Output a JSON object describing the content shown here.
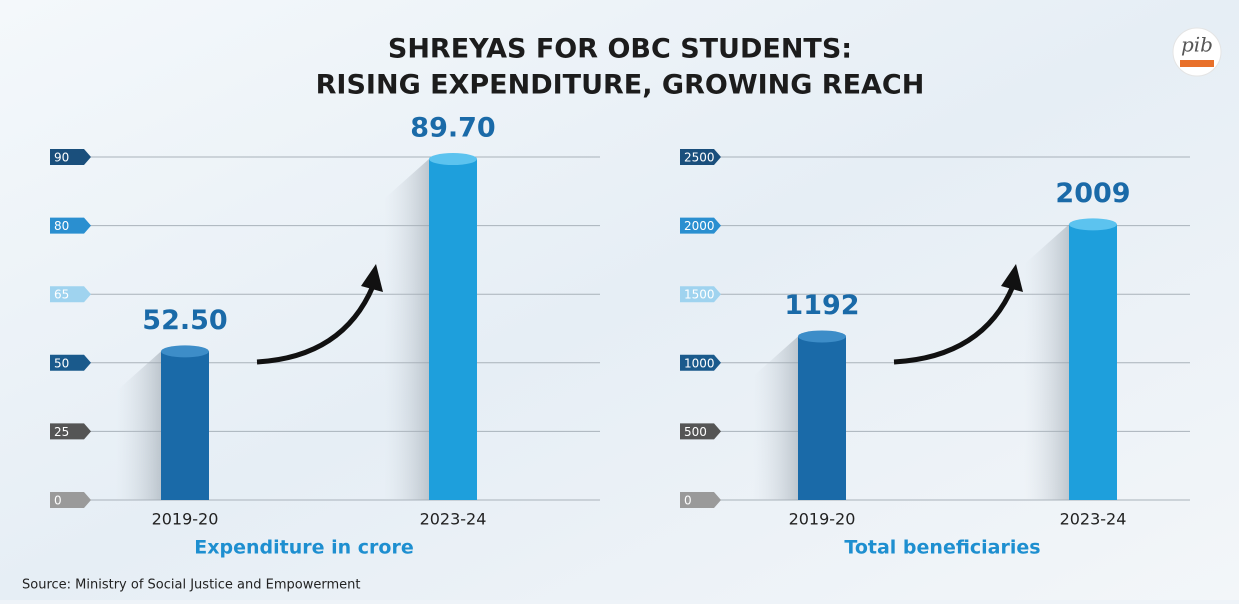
{
  "header": {
    "title": [
      "SHREYAS FOR OBC STUDENTS:",
      "RISING EXPENDITURE, GROWING REACH"
    ],
    "logo": "pib",
    "source": "Source: Ministry of Social Justice and Empowerment"
  },
  "chart_data": [
    {
      "type": "bar",
      "xlabel": "Expenditure in crore",
      "categories": [
        "2019-20",
        "2023-24"
      ],
      "values": [
        52.5,
        89.7
      ],
      "value_labels": [
        "52.50",
        "89.70"
      ],
      "colors": [
        "#1a6aa8",
        "#1e9fdc"
      ],
      "ylim": [
        0,
        90
      ],
      "yticks": [
        0,
        25,
        50,
        65,
        80,
        90
      ],
      "tick_colors": [
        "#9a9a9a",
        "#555555",
        "#1a5a8c",
        "#9fd3ef",
        "#2a8fd0",
        "#1a4f7c"
      ],
      "grid": true
    },
    {
      "type": "bar",
      "xlabel": "Total beneficiaries",
      "categories": [
        "2019-20",
        "2023-24"
      ],
      "values": [
        1192,
        2009
      ],
      "colors": [
        "#1a6aa8",
        "#1e9fdc"
      ],
      "ylim": [
        0,
        2500
      ],
      "yticks": [
        0,
        500,
        1000,
        1500,
        2000,
        2500
      ],
      "tick_colors": [
        "#9a9a9a",
        "#555555",
        "#1a5a8c",
        "#9fd3ef",
        "#2a8fd0",
        "#1a4f7c"
      ],
      "grid": true
    }
  ]
}
